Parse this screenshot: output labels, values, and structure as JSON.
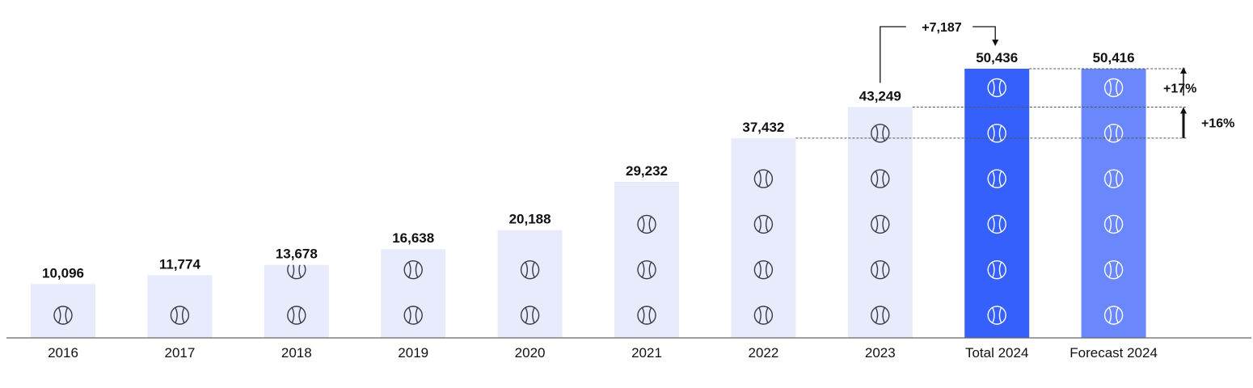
{
  "chart_data": {
    "type": "bar",
    "title": "",
    "xlabel": "",
    "ylabel": "",
    "categories": [
      "2016",
      "2017",
      "2018",
      "2019",
      "2020",
      "2021",
      "2022",
      "2023",
      "Total 2024",
      "Forecast 2024"
    ],
    "values": [
      10096,
      11774,
      13678,
      16638,
      20188,
      29232,
      37432,
      43249,
      50436,
      50416
    ],
    "value_labels": [
      "10,096",
      "11,774",
      "13,678",
      "16,638",
      "20,188",
      "29,232",
      "37,432",
      "43,249",
      "50,436",
      "50,416"
    ],
    "bar_colors": [
      "#e8ebfb",
      "#e8ebfb",
      "#e8ebfb",
      "#e8ebfb",
      "#e8ebfb",
      "#e8ebfb",
      "#e8ebfb",
      "#e8ebfb",
      "#3560fb",
      "#6a87fb"
    ],
    "grid": false,
    "legend": "none",
    "bar_icon": "tennis-ball-icon",
    "annotations": {
      "difference_label": "+7,187",
      "growth_upper_label": "+17%",
      "growth_lower_label": "+16%"
    }
  }
}
